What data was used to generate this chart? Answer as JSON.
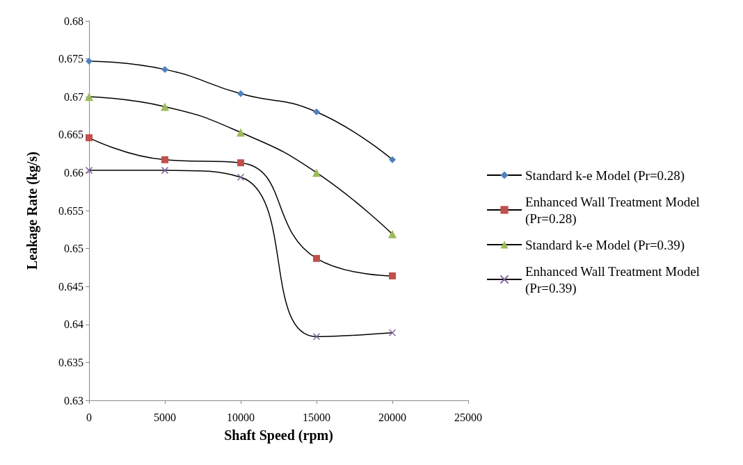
{
  "chart_data": {
    "type": "line",
    "xlabel": "Shaft Speed (rpm)",
    "ylabel": "Leakage Rate (kg/s)",
    "x": [
      0,
      5000,
      10000,
      15000,
      20000
    ],
    "xlim": [
      0,
      25000
    ],
    "xticks": [
      0,
      5000,
      10000,
      15000,
      20000,
      25000
    ],
    "ylim": [
      0.63,
      0.68
    ],
    "yticks": [
      0.63,
      0.635,
      0.64,
      0.645,
      0.65,
      0.655,
      0.66,
      0.665,
      0.67,
      0.675,
      0.68
    ],
    "grid": false,
    "legend": "right",
    "line_style": "solid",
    "series": [
      {
        "name": "Standard k-e Model (Pr=0.28)",
        "color": "#4f81bd",
        "marker": "diamond",
        "values": [
          0.6747,
          0.6736,
          0.6704,
          0.668,
          0.6617
        ]
      },
      {
        "name": "Enhanced Wall Treatment Model (Pr=0.28)",
        "color": "#c0504d",
        "marker": "square",
        "values": [
          0.6646,
          0.6617,
          0.6613,
          0.6487,
          0.6464
        ]
      },
      {
        "name": "Standard k-e Model (Pr=0.39)",
        "color": "#9bbb59",
        "marker": "triangle",
        "values": [
          0.67,
          0.6687,
          0.6653,
          0.66,
          0.6519
        ]
      },
      {
        "name": "Enhanced Wall Treatment Model (Pr=0.39)",
        "color": "#8064a2",
        "marker": "cross",
        "values": [
          0.6603,
          0.6603,
          0.6594,
          0.6384,
          0.6389
        ]
      }
    ]
  }
}
